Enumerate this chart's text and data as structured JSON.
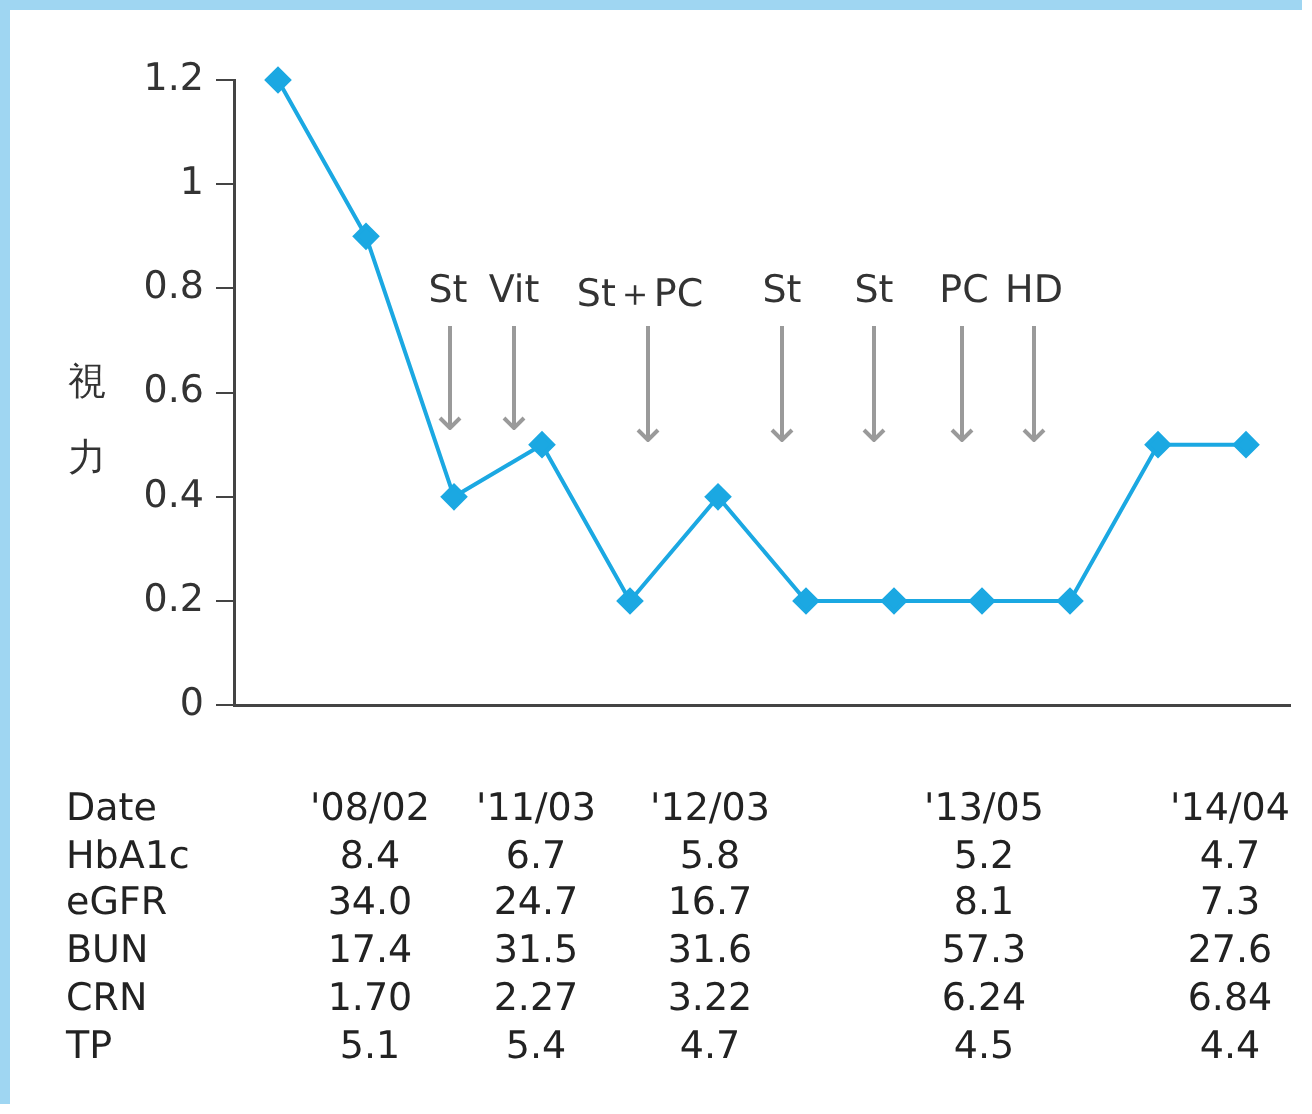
{
  "chart_data": {
    "type": "line",
    "ylabel": "視力",
    "categories": [
      null,
      null,
      null,
      null,
      null,
      null,
      null,
      null,
      null,
      null,
      null,
      null
    ],
    "series": [
      {
        "color": "#1ba8e2",
        "values": [
          1.2,
          0.9,
          0.4,
          0.5,
          0.2,
          0.4,
          0.2,
          0.2,
          0.2,
          0.2,
          0.5,
          0.5
        ]
      }
    ],
    "ylim": [
      0,
      1.2
    ],
    "yticks": [
      0,
      0.2,
      0.4,
      0.6,
      0.8,
      1,
      1.2
    ],
    "grid": false,
    "legend": false,
    "marker": "diamond",
    "line_style": "solid",
    "annotations": [
      "St",
      "Vit",
      "St＋PC",
      "St",
      "St",
      "PC",
      "HD",
      "Date",
      "'08/02",
      "'11/03",
      "'12/03",
      "'13/05",
      "'14/04",
      "HbA1c",
      "8.4",
      "6.7",
      "5.8",
      "5.2",
      "4.7",
      "eGFR",
      "34.0",
      "24.7",
      "16.7",
      "8.1",
      "7.3",
      "BUN",
      "17.4",
      "31.5",
      "31.6",
      "57.3",
      "27.6",
      "CRN",
      "1.70",
      "2.27",
      "3.22",
      "6.24",
      "6.84",
      "TP",
      "5.1",
      "5.4",
      "4.7",
      "4.5",
      "4.4"
    ]
  }
}
